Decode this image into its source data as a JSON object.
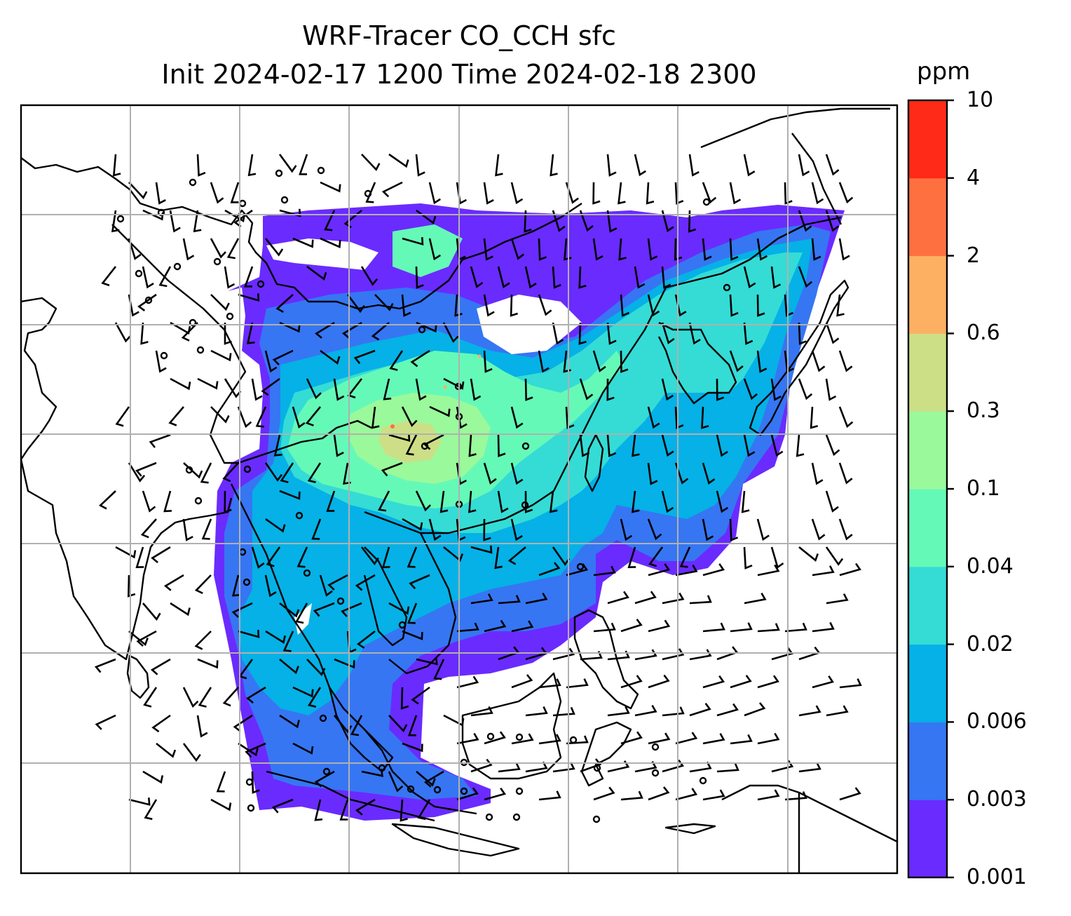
{
  "title": {
    "line1": "WRF-Tracer CO_CCH sfc",
    "line2": "Init 2024-02-17 1200 Time 2024-02-18 2300"
  },
  "colorbar": {
    "unit": "ppm",
    "ticks": [
      "0.001",
      "0.003",
      "0.006",
      "0.02",
      "0.04",
      "0.1",
      "0.3",
      "0.6",
      "2",
      "4",
      "10"
    ],
    "colors": [
      "#6a2bff",
      "#3676f3",
      "#05b1e6",
      "#34dcd5",
      "#65f9b8",
      "#9af99b",
      "#ccdf87",
      "#fdb062",
      "#ff7040",
      "#ff2a17"
    ]
  }
}
